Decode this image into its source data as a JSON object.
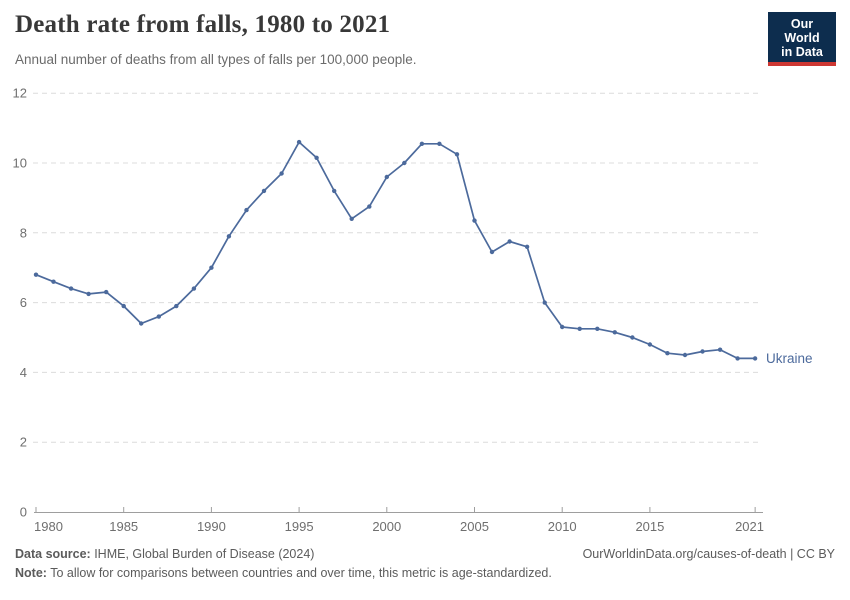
{
  "header": {
    "title": "Death rate from falls, 1980 to 2021",
    "subtitle": "Annual number of deaths from all types of falls per 100,000 people.",
    "logo": {
      "line1": "Our World",
      "line2": "in Data"
    }
  },
  "chart_data": {
    "type": "line",
    "title": "Death rate from falls, 1980 to 2021",
    "ylabel": "",
    "xlabel": "",
    "xlim": [
      1980,
      2021
    ],
    "ylim": [
      0,
      12
    ],
    "x_tick_years": [
      1980,
      1985,
      1990,
      1995,
      2000,
      2005,
      2010,
      2015,
      2021
    ],
    "x_tick_labels": [
      "1980",
      "1985",
      "1990",
      "1995",
      "2000",
      "2005",
      "2010",
      "2015",
      "2021"
    ],
    "y_ticks": [
      0,
      2,
      4,
      6,
      8,
      10,
      12
    ],
    "y_tick_labels": [
      "0",
      "2",
      "4",
      "6",
      "8",
      "10",
      "12"
    ],
    "grid": "horizontal-dashed",
    "legend_position": "end-of-line",
    "end_label": "Ukraine",
    "series": [
      {
        "name": "Ukraine",
        "color": "#4c6a9c",
        "x": [
          1980,
          1981,
          1982,
          1983,
          1984,
          1985,
          1986,
          1987,
          1988,
          1989,
          1990,
          1991,
          1992,
          1993,
          1994,
          1995,
          1996,
          1997,
          1998,
          1999,
          2000,
          2001,
          2002,
          2003,
          2004,
          2005,
          2006,
          2007,
          2008,
          2009,
          2010,
          2011,
          2012,
          2013,
          2014,
          2015,
          2016,
          2017,
          2018,
          2019,
          2020,
          2021
        ],
        "values": [
          6.8,
          6.6,
          6.4,
          6.25,
          6.3,
          5.9,
          5.4,
          5.6,
          5.9,
          6.4,
          7.0,
          7.9,
          8.65,
          9.2,
          9.7,
          10.6,
          10.15,
          9.2,
          8.4,
          8.75,
          9.6,
          10.0,
          10.55,
          10.55,
          10.25,
          8.35,
          7.45,
          7.75,
          7.6,
          6.0,
          5.3,
          5.25,
          5.25,
          5.15,
          5.0,
          4.8,
          4.55,
          4.5,
          4.6,
          4.65,
          4.4,
          4.4
        ]
      }
    ]
  },
  "footer": {
    "source_label": "Data source:",
    "source_text": " IHME, Global Burden of Disease (2024)",
    "attribution": "OurWorldinData.org/causes-of-death | CC BY",
    "note_label": "Note:",
    "note_text": " To allow for comparisons between countries and over time, this metric is age-standardized."
  },
  "colors": {
    "series_blue": "#4c6a9c",
    "gridline": "#dcdcdc",
    "axis": "#9e9e9e",
    "tick_label": "#6f6f6f",
    "title_text": "#383838",
    "subtitle_text": "#6b6b6b",
    "footer_text": "#5b5b5b",
    "logo_navy": "#0d2d4e",
    "logo_red": "#cd3732"
  }
}
